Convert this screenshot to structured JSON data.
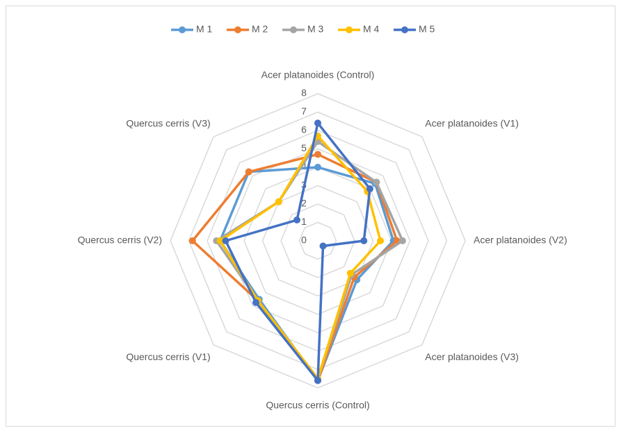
{
  "chart_data": {
    "type": "radar",
    "categories": [
      "Acer platanoides (Control)",
      "Acer platanoides (V1)",
      "Acer platanoides (V2)",
      "Acer platanoides (V3)",
      "Quercus cerris (Control)",
      "Quercus cerris (V1)",
      "Quercus cerris (V2)",
      "Quercus cerris (V3)"
    ],
    "series": [
      {
        "name": "M 1",
        "color": "#5b9bd5",
        "values": [
          4.0,
          4.4,
          4.1,
          3.0,
          7.6,
          4.5,
          5.3,
          5.3
        ]
      },
      {
        "name": "M 2",
        "color": "#ed7d31",
        "values": [
          4.7,
          4.5,
          4.3,
          2.8,
          7.6,
          4.6,
          6.8,
          5.3
        ]
      },
      {
        "name": "M 3",
        "color": "#a5a5a5",
        "values": [
          5.4,
          4.5,
          4.6,
          2.6,
          7.5,
          4.6,
          5.5,
          3.0
        ]
      },
      {
        "name": "M 4",
        "color": "#ffc000",
        "values": [
          5.7,
          3.8,
          3.4,
          2.5,
          7.5,
          4.6,
          5.3,
          3.0
        ]
      },
      {
        "name": "M 5",
        "color": "#4472c4",
        "values": [
          6.4,
          4.0,
          2.5,
          0.4,
          7.6,
          4.75,
          5.0,
          1.6
        ]
      }
    ],
    "ylim": [
      0,
      8
    ],
    "yticks": [
      0,
      1,
      2,
      3,
      4,
      5,
      6,
      7,
      8
    ],
    "grid": true,
    "legend": "top"
  }
}
